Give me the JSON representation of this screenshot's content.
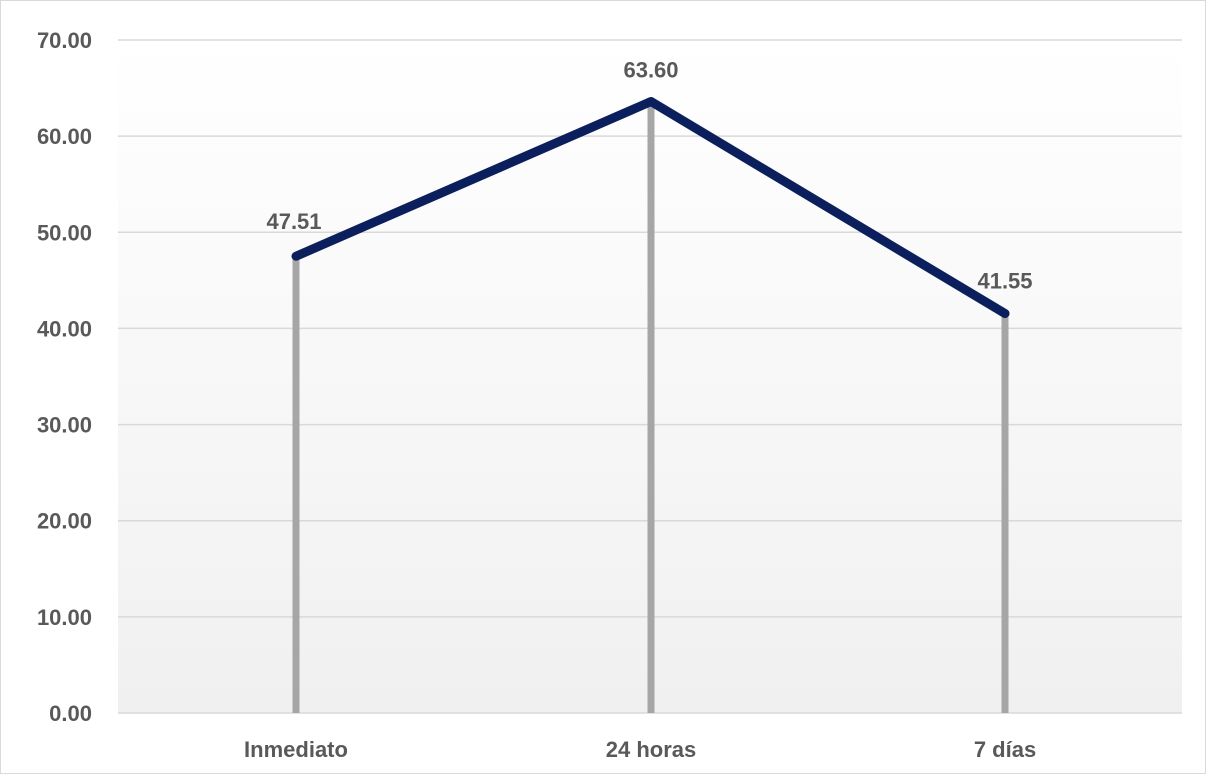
{
  "chart_data": {
    "type": "line",
    "categories": [
      "Inmediato",
      "24 horas",
      "7 días"
    ],
    "series": [
      {
        "values": [
          47.51,
          63.6,
          41.55
        ]
      }
    ],
    "data_labels": [
      "47.51",
      "63.60",
      "41.55"
    ],
    "y_tick_labels": [
      "0.00",
      "10.00",
      "20.00",
      "30.00",
      "40.00",
      "50.00",
      "60.00",
      "70.00"
    ],
    "y_ticks": [
      0,
      10,
      20,
      30,
      40,
      50,
      60,
      70
    ],
    "ylim": [
      0,
      70
    ],
    "grid": true,
    "drop_lines": true,
    "legend": "none",
    "colors": {
      "line": "#0b1f5c",
      "drop_line": "#a6a6a6",
      "grid": "#d9d9d9",
      "text": "#595959",
      "plot_bg_top": "#ffffff",
      "plot_bg_bottom": "#f0f0f0",
      "frame": "#d9d9d9"
    }
  }
}
